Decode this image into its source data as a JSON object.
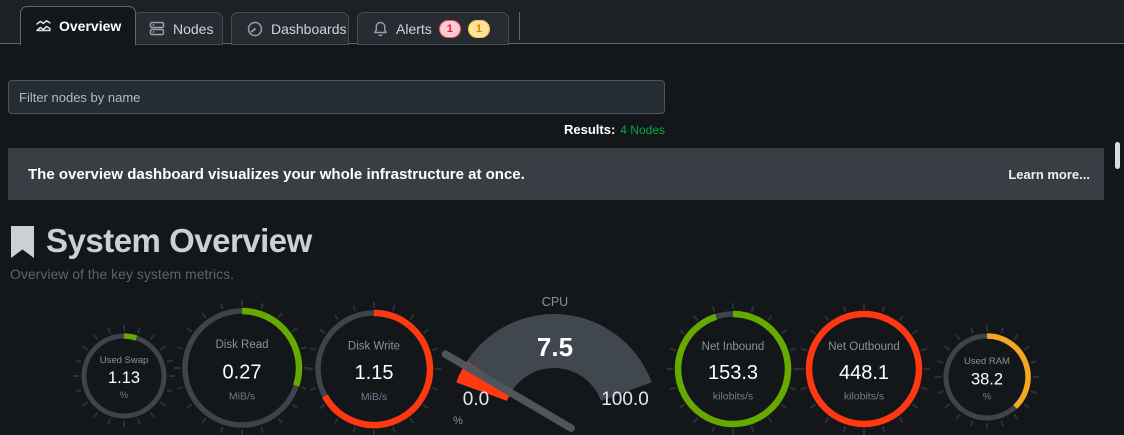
{
  "tabs": [
    {
      "label": "Overview",
      "icon": "area-chart-icon",
      "active": true
    },
    {
      "label": "Nodes",
      "icon": "server-stack-icon",
      "active": false
    },
    {
      "label": "Dashboards",
      "icon": "gauge-icon",
      "active": false
    },
    {
      "label": "Alerts",
      "icon": "bell-icon",
      "active": false,
      "badges": [
        {
          "value": "1",
          "severity": "critical"
        },
        {
          "value": "1",
          "severity": "warning"
        }
      ]
    }
  ],
  "filter": {
    "placeholder": "Filter nodes by name"
  },
  "results": {
    "label": "Results:",
    "value": "4 Nodes"
  },
  "banner": {
    "message": "The overview dashboard visualizes your whole infrastructure at once.",
    "link": "Learn more..."
  },
  "section": {
    "title": "System Overview",
    "subtitle": "Overview of the key system metrics."
  },
  "colors": {
    "green": "#66aa00",
    "red": "#fe3912",
    "orange": "#f5a623",
    "results_green": "#00ab44",
    "ring_background": "#3e444b",
    "tick": "#2c3136",
    "gauge_fan": "#41474e",
    "needle": "#4e555c",
    "label_text": "#8294a2",
    "unit_text": "#6c7f8e",
    "value_text": "#ffffff"
  },
  "chart_data": [
    {
      "type": "ring-gauge",
      "title": "Used Swap",
      "value": "1.13",
      "units": "%",
      "fraction": 0.05,
      "color": "#66aa00",
      "size": "small"
    },
    {
      "type": "ring-gauge",
      "title": "Disk Read",
      "value": "0.27",
      "units": "MiB/s",
      "fraction": 0.3,
      "color": "#66aa00",
      "size": "large"
    },
    {
      "type": "ring-gauge",
      "title": "Disk Write",
      "value": "1.15",
      "units": "MiB/s",
      "fraction": 0.67,
      "color": "#fe3912",
      "size": "large"
    },
    {
      "type": "gauge",
      "title": "CPU",
      "value": "7.5",
      "units": "%",
      "fraction": 0.075,
      "color": "#fe3912",
      "min": "0.0",
      "max": "100.0"
    },
    {
      "type": "ring-gauge",
      "title": "Net Inbound",
      "value": "153.3",
      "units": "kilobits/s",
      "fraction": 0.95,
      "color": "#66aa00",
      "size": "large"
    },
    {
      "type": "ring-gauge",
      "title": "Net Outbound",
      "value": "448.1",
      "units": "kilobits/s",
      "fraction": 1.0,
      "color": "#fe3912",
      "size": "large"
    },
    {
      "type": "ring-gauge",
      "title": "Used RAM",
      "value": "38.2",
      "units": "%",
      "fraction": 0.38,
      "color": "#f5a623",
      "size": "small"
    }
  ]
}
